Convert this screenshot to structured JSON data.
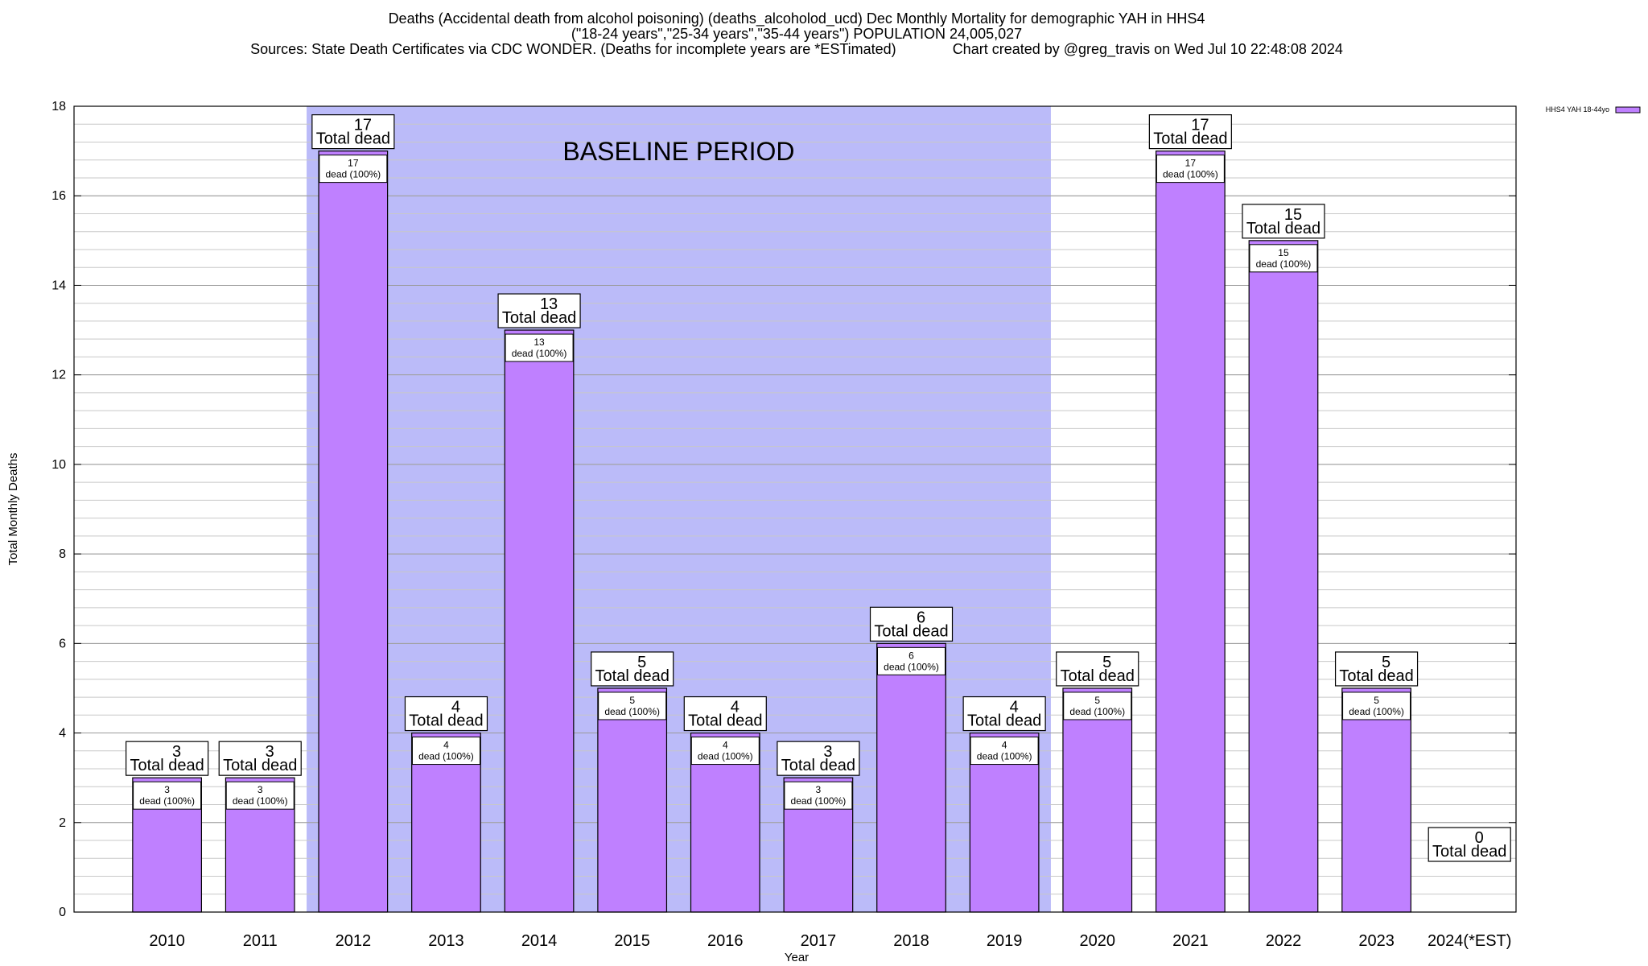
{
  "titles": {
    "line1": "Deaths (Accidental death from alcohol poisoning) (deaths_alcoholod_ucd) Dec Monthly Mortality for demographic YAH in HHS4",
    "line2": "(\"18-24 years\",\"25-34 years\",\"35-44 years\") POPULATION 24,005,027",
    "line3_left": "Sources: State Death Certificates via CDC WONDER. (Deaths for incomplete years are *ESTimated)",
    "line3_right": "Chart created by @greg_travis on Wed Jul 10 22:48:08 2024"
  },
  "chart_data": {
    "type": "bar",
    "categories": [
      "2010",
      "2011",
      "2012",
      "2013",
      "2014",
      "2015",
      "2016",
      "2017",
      "2018",
      "2019",
      "2020",
      "2021",
      "2022",
      "2023",
      "2024(*EST)"
    ],
    "series": [
      {
        "name": "HHS4 YAH 18-44yo",
        "values": [
          3,
          3,
          17,
          4,
          13,
          5,
          4,
          3,
          6,
          4,
          5,
          17,
          15,
          5,
          0
        ],
        "color": "#bf80ff"
      }
    ],
    "total_label": "Total dead",
    "inner_label_suffix": "dead (100%)",
    "xlabel": "Year",
    "ylabel": "Total Monthly Deaths",
    "ylim": [
      0,
      18
    ],
    "yticks": [
      0,
      2,
      4,
      6,
      8,
      10,
      12,
      14,
      16,
      18
    ],
    "grid": true,
    "legend_position": "top-right",
    "annotation": {
      "text": "BASELINE PERIOD",
      "from_category": "2012",
      "to_category": "2019",
      "color": "#bbbbf9"
    }
  }
}
